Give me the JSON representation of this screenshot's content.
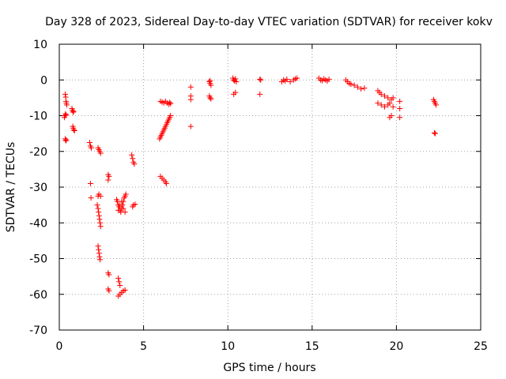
{
  "chart_data": {
    "type": "scatter",
    "title": "Day 328 of 2023, Sidereal Day-to-day VTEC variation (SDTVAR) for receiver kokv",
    "xlabel": "GPS time / hours",
    "ylabel": "SDTVAR / TECUs",
    "xlim": [
      0,
      25
    ],
    "ylim": [
      -70,
      10
    ],
    "xticks": [
      0,
      5,
      10,
      15,
      20,
      25
    ],
    "yticks": [
      -70,
      -60,
      -50,
      -40,
      -30,
      -20,
      -10,
      0,
      10
    ],
    "grid": true,
    "marker": "+",
    "color": "#ff0000",
    "series": [
      {
        "name": "SDTVAR",
        "points": [
          [
            0.35,
            -4.0
          ],
          [
            0.38,
            -4.8
          ],
          [
            0.4,
            -6.0
          ],
          [
            0.42,
            -6.5
          ],
          [
            0.44,
            -7.0
          ],
          [
            0.3,
            -10.5
          ],
          [
            0.33,
            -10.0
          ],
          [
            0.37,
            -9.5
          ],
          [
            0.4,
            -9.8
          ],
          [
            0.35,
            -16.5
          ],
          [
            0.38,
            -17.0
          ],
          [
            0.42,
            -16.8
          ],
          [
            0.75,
            -8.0
          ],
          [
            0.78,
            -8.5
          ],
          [
            0.82,
            -9.0
          ],
          [
            0.85,
            -8.8
          ],
          [
            0.8,
            -13.0
          ],
          [
            0.83,
            -13.5
          ],
          [
            0.86,
            -14.0
          ],
          [
            0.9,
            -14.2
          ],
          [
            1.8,
            -17.5
          ],
          [
            1.85,
            -18.5
          ],
          [
            1.9,
            -19.0
          ],
          [
            1.85,
            -29.0
          ],
          [
            1.88,
            -33.0
          ],
          [
            2.3,
            -19.0
          ],
          [
            2.35,
            -19.5
          ],
          [
            2.4,
            -20.0
          ],
          [
            2.45,
            -20.5
          ],
          [
            2.3,
            -32.5
          ],
          [
            2.35,
            -32.0
          ],
          [
            2.45,
            -32.5
          ],
          [
            2.25,
            -35.0
          ],
          [
            2.3,
            -36.0
          ],
          [
            2.33,
            -37.0
          ],
          [
            2.36,
            -38.0
          ],
          [
            2.39,
            -39.0
          ],
          [
            2.42,
            -40.0
          ],
          [
            2.45,
            -41.0
          ],
          [
            2.3,
            -46.5
          ],
          [
            2.33,
            -47.5
          ],
          [
            2.36,
            -48.5
          ],
          [
            2.39,
            -49.5
          ],
          [
            2.42,
            -50.3
          ],
          [
            2.9,
            -26.5
          ],
          [
            2.95,
            -27.0
          ],
          [
            2.9,
            -28.0
          ],
          [
            2.9,
            -54.0
          ],
          [
            2.95,
            -54.5
          ],
          [
            2.9,
            -58.5
          ],
          [
            2.95,
            -59.0
          ],
          [
            3.4,
            -33.5
          ],
          [
            3.45,
            -34.0
          ],
          [
            3.5,
            -35.0
          ],
          [
            3.55,
            -35.5
          ],
          [
            3.6,
            -36.5
          ],
          [
            3.65,
            -37.0
          ],
          [
            3.7,
            -36.0
          ],
          [
            3.75,
            -35.0
          ],
          [
            3.8,
            -34.0
          ],
          [
            3.85,
            -33.0
          ],
          [
            3.9,
            -32.5
          ],
          [
            3.95,
            -32.0
          ],
          [
            3.5,
            -36.5
          ],
          [
            3.6,
            -35.0
          ],
          [
            3.7,
            -34.0
          ],
          [
            3.8,
            -36.0
          ],
          [
            3.9,
            -37.0
          ],
          [
            3.5,
            -55.5
          ],
          [
            3.55,
            -56.5
          ],
          [
            3.6,
            -57.5
          ],
          [
            3.5,
            -60.5
          ],
          [
            3.6,
            -60.0
          ],
          [
            3.7,
            -59.5
          ],
          [
            3.8,
            -59.0
          ],
          [
            3.9,
            -58.8
          ],
          [
            4.3,
            -21.0
          ],
          [
            4.35,
            -22.0
          ],
          [
            4.4,
            -23.0
          ],
          [
            4.45,
            -23.5
          ],
          [
            4.35,
            -35.5
          ],
          [
            4.4,
            -35.0
          ],
          [
            4.5,
            -34.8
          ],
          [
            5.95,
            -16.5
          ],
          [
            6.0,
            -16.0
          ],
          [
            6.05,
            -15.5
          ],
          [
            6.1,
            -15.0
          ],
          [
            6.15,
            -14.5
          ],
          [
            6.2,
            -14.0
          ],
          [
            6.25,
            -13.5
          ],
          [
            6.3,
            -13.0
          ],
          [
            6.35,
            -12.5
          ],
          [
            6.4,
            -12.0
          ],
          [
            6.45,
            -11.5
          ],
          [
            6.5,
            -11.0
          ],
          [
            6.55,
            -10.5
          ],
          [
            6.6,
            -10.0
          ],
          [
            6.0,
            -6.0
          ],
          [
            6.1,
            -6.2
          ],
          [
            6.2,
            -6.4
          ],
          [
            6.3,
            -6.0
          ],
          [
            6.4,
            -6.5
          ],
          [
            6.5,
            -6.8
          ],
          [
            6.55,
            -6.3
          ],
          [
            6.6,
            -6.6
          ],
          [
            6.0,
            -27.0
          ],
          [
            6.1,
            -27.5
          ],
          [
            6.2,
            -28.0
          ],
          [
            6.3,
            -28.5
          ],
          [
            6.35,
            -29.0
          ],
          [
            7.8,
            -2.0
          ],
          [
            7.8,
            -4.5
          ],
          [
            7.8,
            -5.5
          ],
          [
            7.8,
            -13.0
          ],
          [
            8.9,
            -0.5
          ],
          [
            8.95,
            -1.0
          ],
          [
            9.0,
            -1.5
          ],
          [
            8.95,
            -0.2
          ],
          [
            8.9,
            -4.5
          ],
          [
            8.95,
            -5.0
          ],
          [
            9.0,
            -5.3
          ],
          [
            10.3,
            0.5
          ],
          [
            10.35,
            0.0
          ],
          [
            10.4,
            -0.3
          ],
          [
            10.45,
            0.3
          ],
          [
            10.5,
            -0.5
          ],
          [
            10.35,
            -4.0
          ],
          [
            10.45,
            -3.5
          ],
          [
            11.9,
            0.2
          ],
          [
            11.95,
            0.0
          ],
          [
            11.9,
            -4.0
          ],
          [
            13.2,
            -0.5
          ],
          [
            13.3,
            0.0
          ],
          [
            13.4,
            -0.3
          ],
          [
            13.5,
            0.2
          ],
          [
            13.7,
            -0.5
          ],
          [
            13.9,
            0.0
          ],
          [
            14.0,
            0.3
          ],
          [
            14.1,
            0.5
          ],
          [
            15.4,
            0.5
          ],
          [
            15.5,
            0.0
          ],
          [
            15.6,
            -0.2
          ],
          [
            15.7,
            0.3
          ],
          [
            15.8,
            0.0
          ],
          [
            15.9,
            -0.3
          ],
          [
            16.0,
            0.2
          ],
          [
            17.0,
            0.0
          ],
          [
            17.1,
            -0.5
          ],
          [
            17.2,
            -1.0
          ],
          [
            17.3,
            -1.2
          ],
          [
            17.5,
            -1.5
          ],
          [
            17.7,
            -2.0
          ],
          [
            17.9,
            -2.5
          ],
          [
            18.1,
            -2.3
          ],
          [
            18.9,
            -3.0
          ],
          [
            19.0,
            -3.5
          ],
          [
            19.1,
            -4.0
          ],
          [
            19.3,
            -4.5
          ],
          [
            19.5,
            -5.0
          ],
          [
            19.7,
            -5.5
          ],
          [
            19.8,
            -5.0
          ],
          [
            18.9,
            -6.5
          ],
          [
            19.1,
            -7.0
          ],
          [
            19.3,
            -7.5
          ],
          [
            19.5,
            -7.0
          ],
          [
            19.6,
            -6.5
          ],
          [
            19.8,
            -7.5
          ],
          [
            19.6,
            -10.5
          ],
          [
            19.7,
            -10.0
          ],
          [
            20.2,
            -6.0
          ],
          [
            20.2,
            -8.0
          ],
          [
            20.2,
            -10.5
          ],
          [
            22.2,
            -5.5
          ],
          [
            22.25,
            -6.0
          ],
          [
            22.3,
            -6.5
          ],
          [
            22.35,
            -7.0
          ],
          [
            22.25,
            -14.8
          ],
          [
            22.3,
            -15.0
          ]
        ]
      }
    ]
  }
}
